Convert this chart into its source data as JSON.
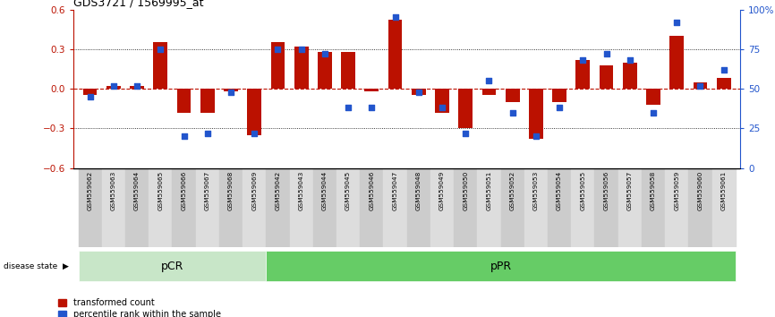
{
  "title": "GDS3721 / 1569995_at",
  "samples": [
    "GSM559062",
    "GSM559063",
    "GSM559064",
    "GSM559065",
    "GSM559066",
    "GSM559067",
    "GSM559068",
    "GSM559069",
    "GSM559042",
    "GSM559043",
    "GSM559044",
    "GSM559045",
    "GSM559046",
    "GSM559047",
    "GSM559048",
    "GSM559049",
    "GSM559050",
    "GSM559051",
    "GSM559052",
    "GSM559053",
    "GSM559054",
    "GSM559055",
    "GSM559056",
    "GSM559057",
    "GSM559058",
    "GSM559059",
    "GSM559060",
    "GSM559061"
  ],
  "red_values": [
    -0.05,
    0.02,
    0.02,
    0.35,
    -0.18,
    -0.18,
    -0.02,
    -0.35,
    0.35,
    0.32,
    0.28,
    0.28,
    -0.02,
    0.52,
    -0.05,
    -0.18,
    -0.3,
    -0.05,
    -0.1,
    -0.38,
    -0.1,
    0.22,
    0.18,
    0.2,
    -0.12,
    0.4,
    0.05,
    0.08
  ],
  "blue_values": [
    45,
    52,
    52,
    75,
    20,
    22,
    48,
    22,
    75,
    75,
    72,
    38,
    38,
    95,
    48,
    38,
    22,
    55,
    35,
    20,
    38,
    68,
    72,
    68,
    35,
    92,
    52,
    62
  ],
  "pCR_count": 8,
  "pPR_count": 20,
  "ylim": [
    -0.6,
    0.6
  ],
  "yticks_red": [
    -0.6,
    -0.3,
    0.0,
    0.3,
    0.6
  ],
  "yticks_blue": [
    0,
    25,
    50,
    75,
    100
  ],
  "ytick_blue_labels": [
    "0",
    "25",
    "50",
    "75",
    "100%"
  ],
  "red_color": "#bb1100",
  "blue_color": "#2255cc",
  "pCR_color": "#c8e6c8",
  "pPR_color": "#66cc66",
  "bar_width": 0.6,
  "dot_size": 18
}
